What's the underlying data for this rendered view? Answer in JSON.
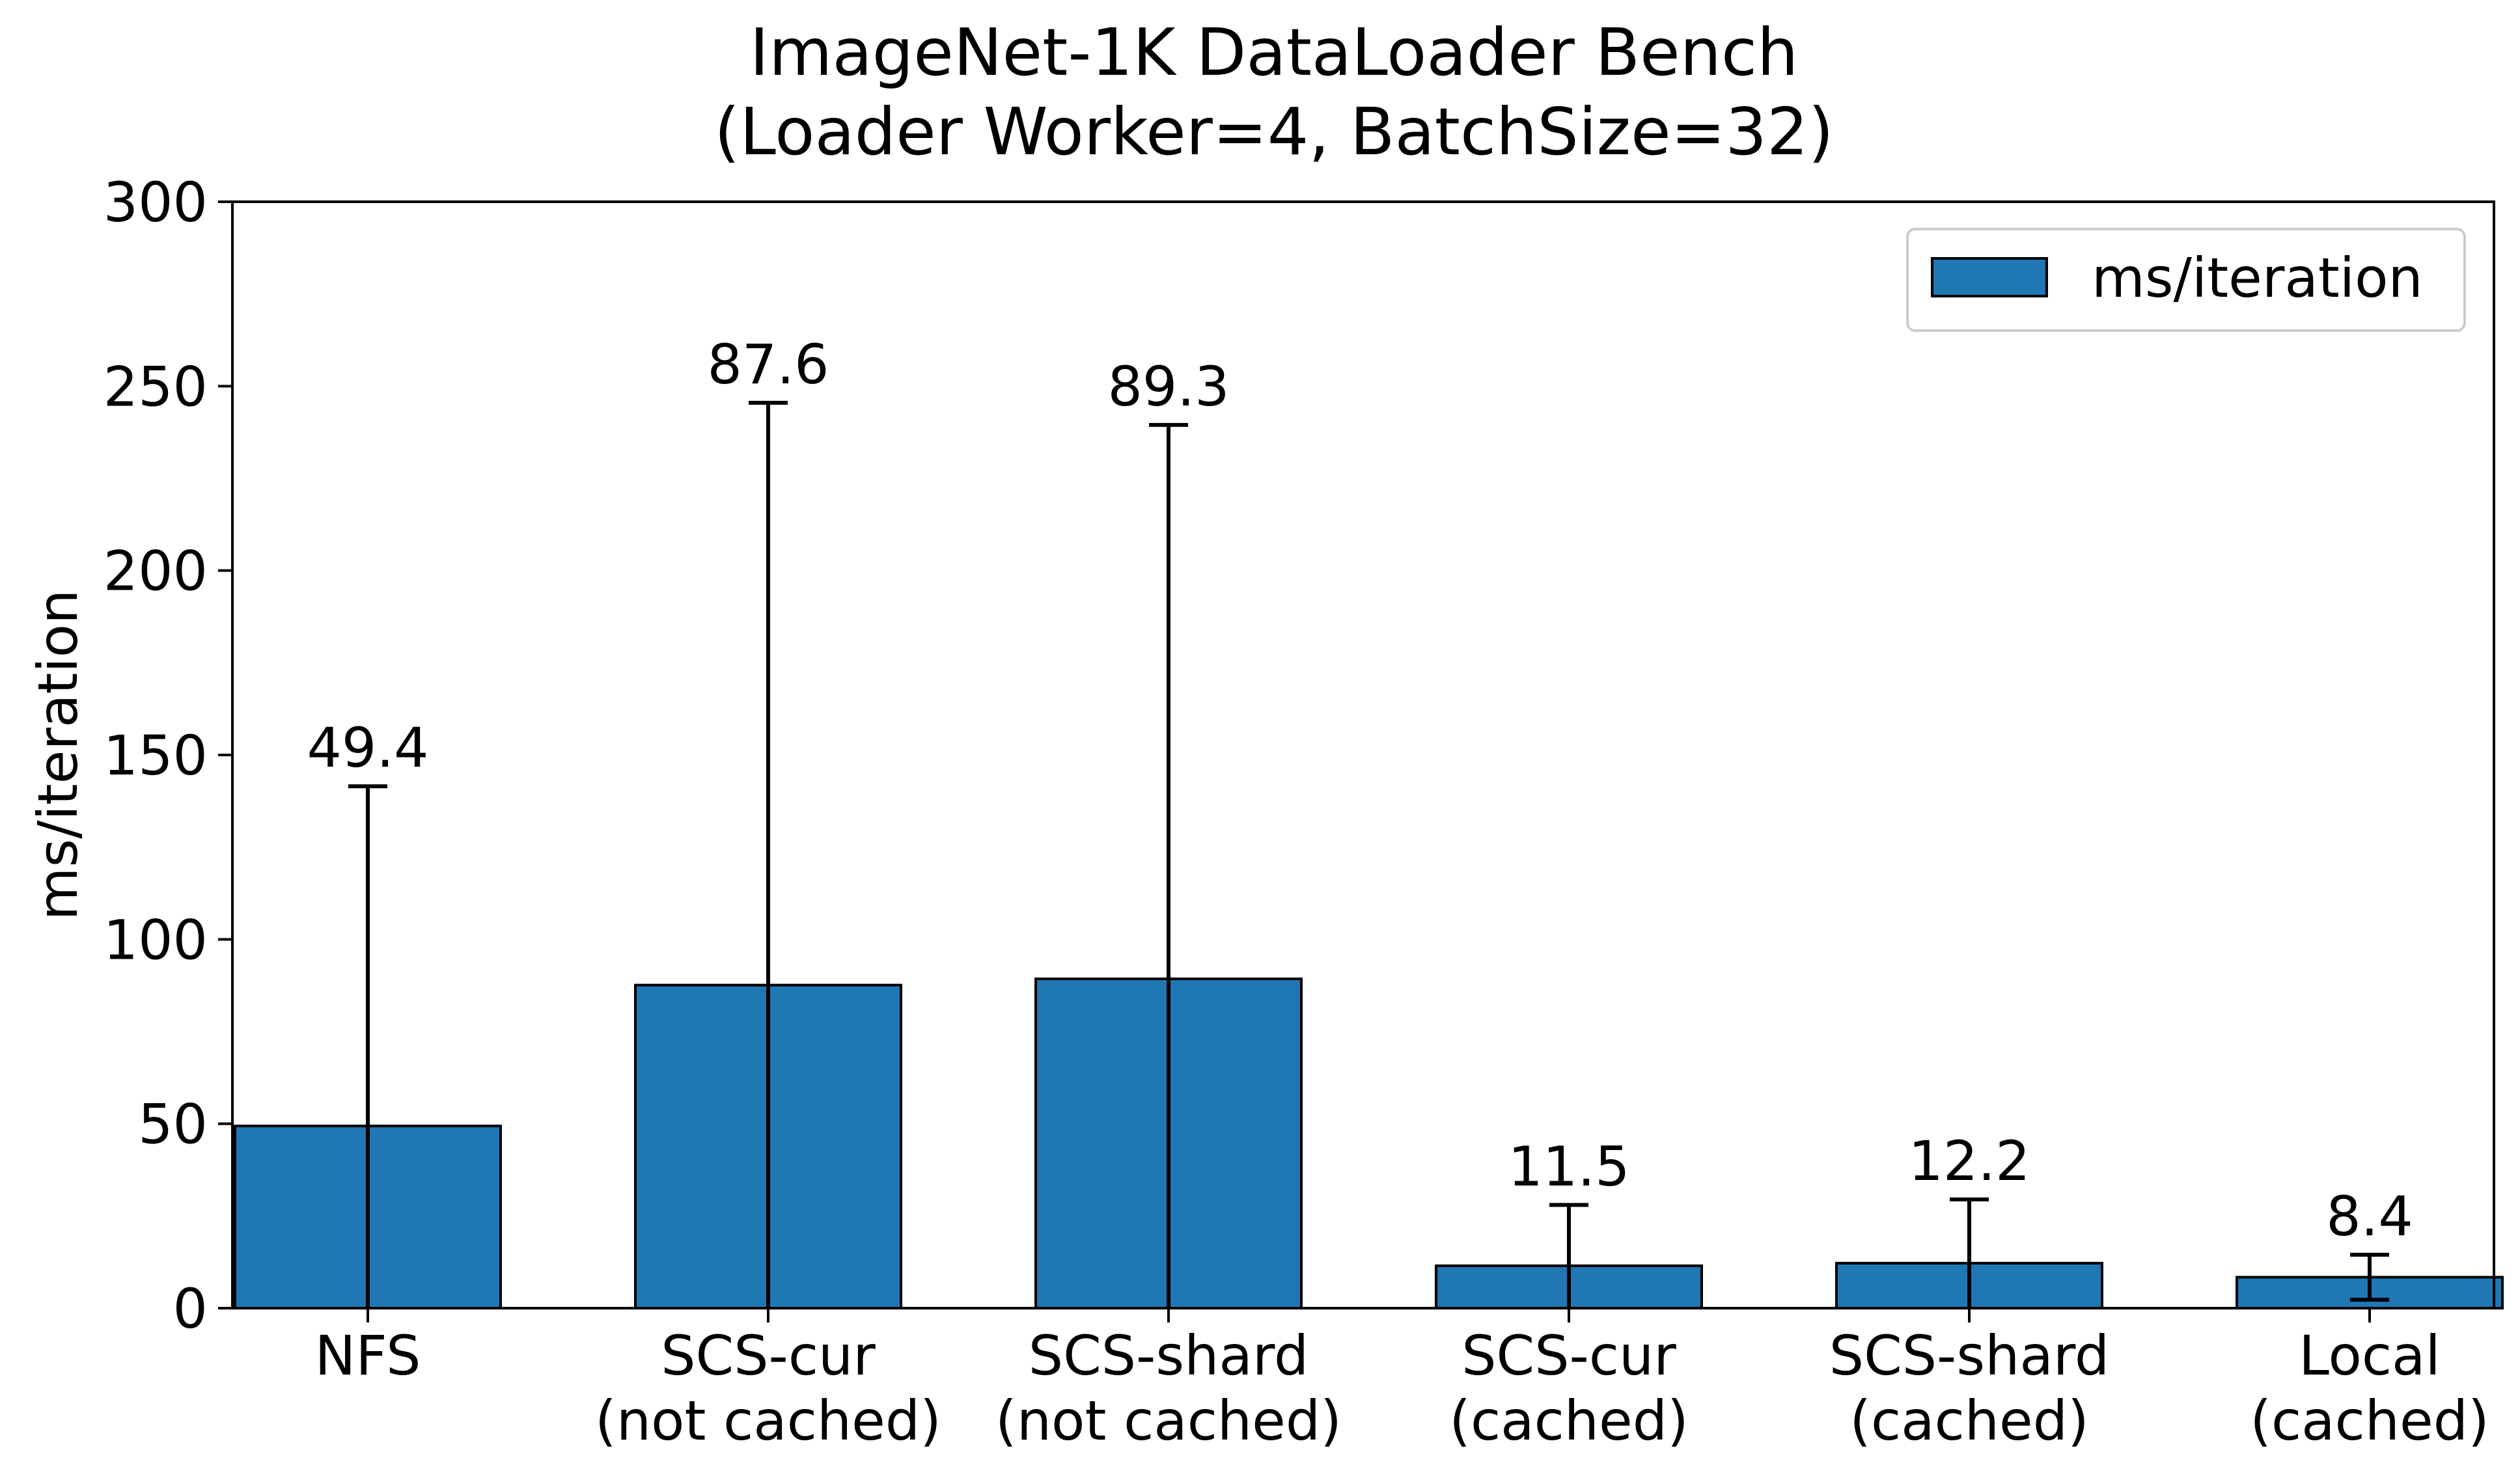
{
  "chart_data": {
    "type": "bar",
    "title": "ImageNet-1K DataLoader Bench\n(Loader Worker=4, BatchSize=32)",
    "title_lines": [
      "ImageNet-1K DataLoader Bench",
      "(Loader Worker=4, BatchSize=32)"
    ],
    "xlabel": "",
    "ylabel": "ms/iteration",
    "ylim": [
      0,
      300
    ],
    "yticks": [
      0,
      50,
      100,
      150,
      200,
      250,
      300
    ],
    "grid": false,
    "legend_position": "top-right",
    "categories": [
      [
        "NFS"
      ],
      [
        "SCS-cur",
        "(not cached)"
      ],
      [
        "SCS-shard",
        "(not cached)"
      ],
      [
        "SCS-cur",
        "(cached)"
      ],
      [
        "SCS-shard",
        "(cached)"
      ],
      [
        "Local",
        "(cached)"
      ]
    ],
    "series": [
      {
        "name": "ms/iteration",
        "color": "#1f77b4",
        "values": [
          49.4,
          87.6,
          89.3,
          11.5,
          12.2,
          8.4
        ],
        "value_labels": [
          "49.4",
          "87.6",
          "89.3",
          "11.5",
          "12.2",
          "8.4"
        ],
        "error_upper": [
          141.5,
          245.5,
          239.5,
          28.0,
          29.5,
          14.5
        ],
        "error_lower": [
          0,
          0,
          0,
          0,
          0,
          2.3
        ]
      }
    ]
  }
}
